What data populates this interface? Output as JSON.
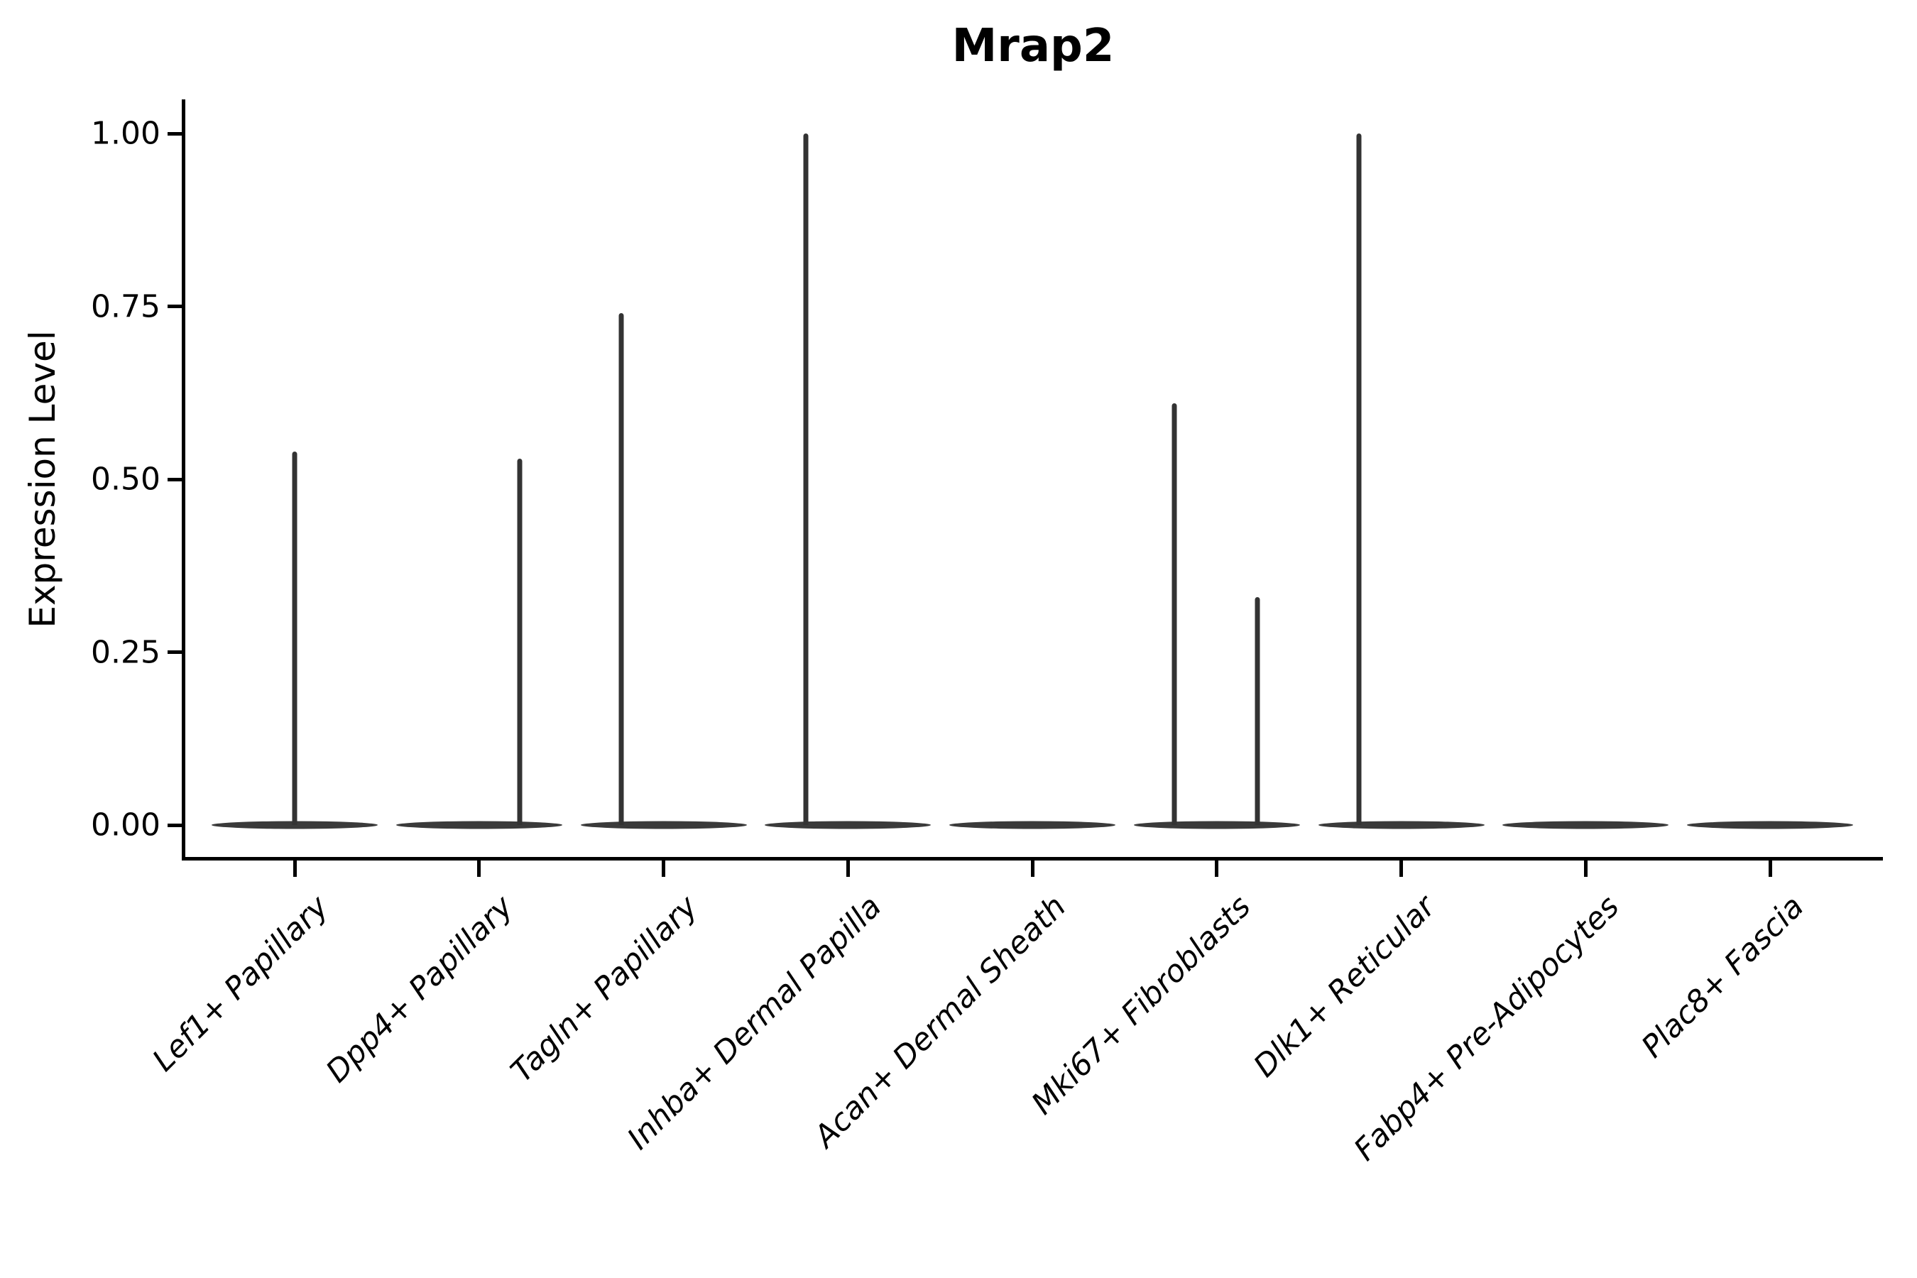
{
  "chart_data": {
    "type": "violin",
    "title": "Mrap2",
    "xlabel": "",
    "ylabel": "Expression Level",
    "ylim": [
      0,
      1.0
    ],
    "grid": false,
    "legend": "none",
    "yticks": [
      {
        "value": 0.0,
        "label": "0.00"
      },
      {
        "value": 0.25,
        "label": "0.25"
      },
      {
        "value": 0.5,
        "label": "0.50"
      },
      {
        "value": 0.75,
        "label": "0.75"
      },
      {
        "value": 1.0,
        "label": "1.00"
      }
    ],
    "categories": [
      "Lef1+ Papillary",
      "Dpp4+ Papillary",
      "Tagln+ Papillary",
      "Inhba+ Dermal Papilla",
      "Acan+ Dermal Sheath",
      "Mki67+ Fibroblasts",
      "Dlk1+ Reticular",
      "Fabp4+ Pre-Adipocytes",
      "Plac8+ Fascia"
    ],
    "violins": [
      {
        "category": "Lef1+ Papillary",
        "zero_base": true,
        "max_value": 0.54,
        "spikes": [
          {
            "value": 0.54,
            "offset_frac": 0.0
          }
        ]
      },
      {
        "category": "Dpp4+ Papillary",
        "zero_base": true,
        "max_value": 0.53,
        "spikes": [
          {
            "value": 0.53,
            "offset_frac": 0.22
          }
        ]
      },
      {
        "category": "Tagln+ Papillary",
        "zero_base": true,
        "max_value": 0.74,
        "spikes": [
          {
            "value": 0.74,
            "offset_frac": -0.23
          }
        ]
      },
      {
        "category": "Inhba+ Dermal Papilla",
        "zero_base": true,
        "max_value": 1.0,
        "spikes": [
          {
            "value": 1.0,
            "offset_frac": -0.23
          }
        ]
      },
      {
        "category": "Acan+ Dermal Sheath",
        "zero_base": true,
        "max_value": 0.0,
        "spikes": []
      },
      {
        "category": "Mki67+ Fibroblasts",
        "zero_base": true,
        "max_value": 0.61,
        "spikes": [
          {
            "value": 0.61,
            "offset_frac": -0.23
          },
          {
            "value": 0.33,
            "offset_frac": 0.22
          }
        ]
      },
      {
        "category": "Dlk1+ Reticular",
        "zero_base": true,
        "max_value": 1.0,
        "spikes": [
          {
            "value": 1.0,
            "offset_frac": -0.23
          }
        ]
      },
      {
        "category": "Fabp4+ Pre-Adipocytes",
        "zero_base": true,
        "max_value": 0.0,
        "spikes": []
      },
      {
        "category": "Plac8+ Fascia",
        "zero_base": true,
        "max_value": 0.0,
        "spikes": []
      }
    ],
    "colors": {
      "spike": "#333333",
      "violin_base": "#3a3a3a",
      "axis": "#000000",
      "text": "#000000",
      "background": "#ffffff"
    }
  }
}
